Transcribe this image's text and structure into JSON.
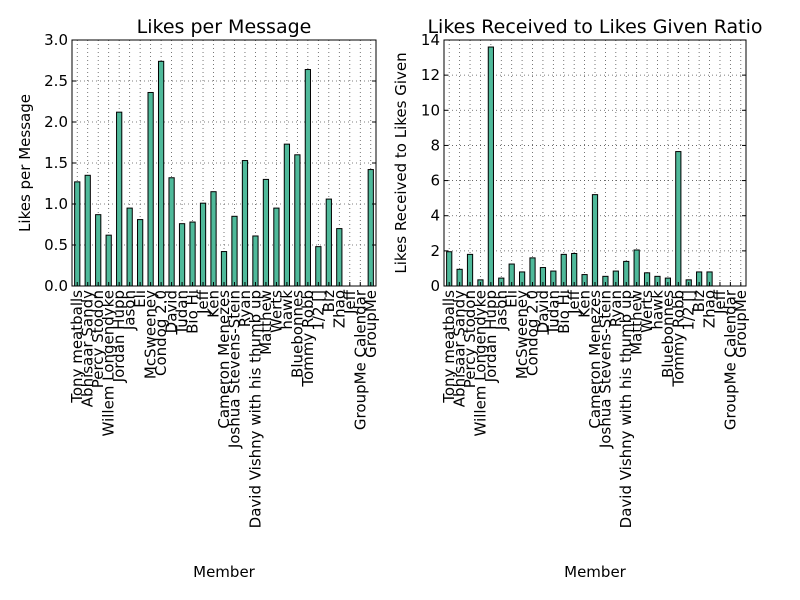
{
  "colors": {
    "bar": "#4fb99a",
    "edge": "#000000",
    "grid": "#555555"
  },
  "chart_data": [
    {
      "type": "bar",
      "title": "Likes per Message",
      "xlabel": "Member",
      "ylabel": "Likes per Message",
      "ylim": [
        0,
        3.0
      ],
      "yticks": [
        "0.0",
        "0.5",
        "1.0",
        "1.5",
        "2.0",
        "2.5",
        "3.0"
      ],
      "grid": true,
      "categories": [
        "Tony meatballs",
        "Abhisaar Sandy",
        "Percy Stodon",
        "Willem Longendyke",
        "Jordan Hupp",
        "Jason",
        "Eli",
        "McSweeney",
        "Condog 2.0",
        "David",
        "Tudan",
        "Bio Hi",
        "Jeff",
        "Ken",
        "Cameron Menezes",
        "Joshua Stevens-Stein",
        "Ryan",
        "David Vishny with his thumb up",
        "Matthew",
        "Werts",
        "hawk",
        "Bluebonnes",
        "Tommy Robb",
        "1/2 []",
        "Biz",
        "Zhao",
        "Jeff",
        "GroupMe Calendar",
        "GroupMe"
      ],
      "values": [
        1.27,
        1.35,
        0.87,
        0.62,
        2.12,
        0.95,
        0.81,
        2.36,
        2.74,
        1.32,
        0.76,
        0.78,
        1.01,
        1.15,
        0.42,
        0.85,
        1.53,
        0.61,
        1.3,
        0.95,
        1.73,
        1.6,
        2.64,
        0.48,
        1.06,
        0.7,
        0.0,
        0.0,
        1.42
      ]
    },
    {
      "type": "bar",
      "title": "Likes Received to Likes Given Ratio",
      "xlabel": "Member",
      "ylabel": "Likes Received to Likes Given",
      "ylim": [
        0,
        14
      ],
      "yticks": [
        "0",
        "2",
        "4",
        "6",
        "8",
        "10",
        "12",
        "14"
      ],
      "grid": true,
      "categories": [
        "Tony meatballs",
        "Abhisaar Sandy",
        "Percy Stodon",
        "Willem Longendyke",
        "Jordan Hupp",
        "Jason",
        "Eli",
        "McSweeney",
        "Condog 2.0",
        "David",
        "Tudan",
        "Bio Hi",
        "Jeff",
        "Ken",
        "Cameron Menezes",
        "Joshua Stevens-Stein",
        "Ryan",
        "David Vishny with his thumb up",
        "Matthew",
        "Werts",
        "hawk",
        "Bluebonnes",
        "Tommy Robb",
        "1/2 []",
        "Biz",
        "Zhao",
        "Jeff",
        "GroupMe Calendar",
        "GroupMe"
      ],
      "values": [
        1.95,
        0.95,
        1.8,
        0.35,
        13.6,
        0.45,
        1.25,
        0.8,
        1.6,
        1.05,
        0.85,
        1.8,
        1.85,
        0.65,
        5.2,
        0.55,
        0.85,
        1.4,
        2.05,
        0.75,
        0.55,
        0.45,
        7.65,
        0.35,
        0.8,
        0.8,
        0.0,
        0.0,
        0.0
      ]
    }
  ]
}
